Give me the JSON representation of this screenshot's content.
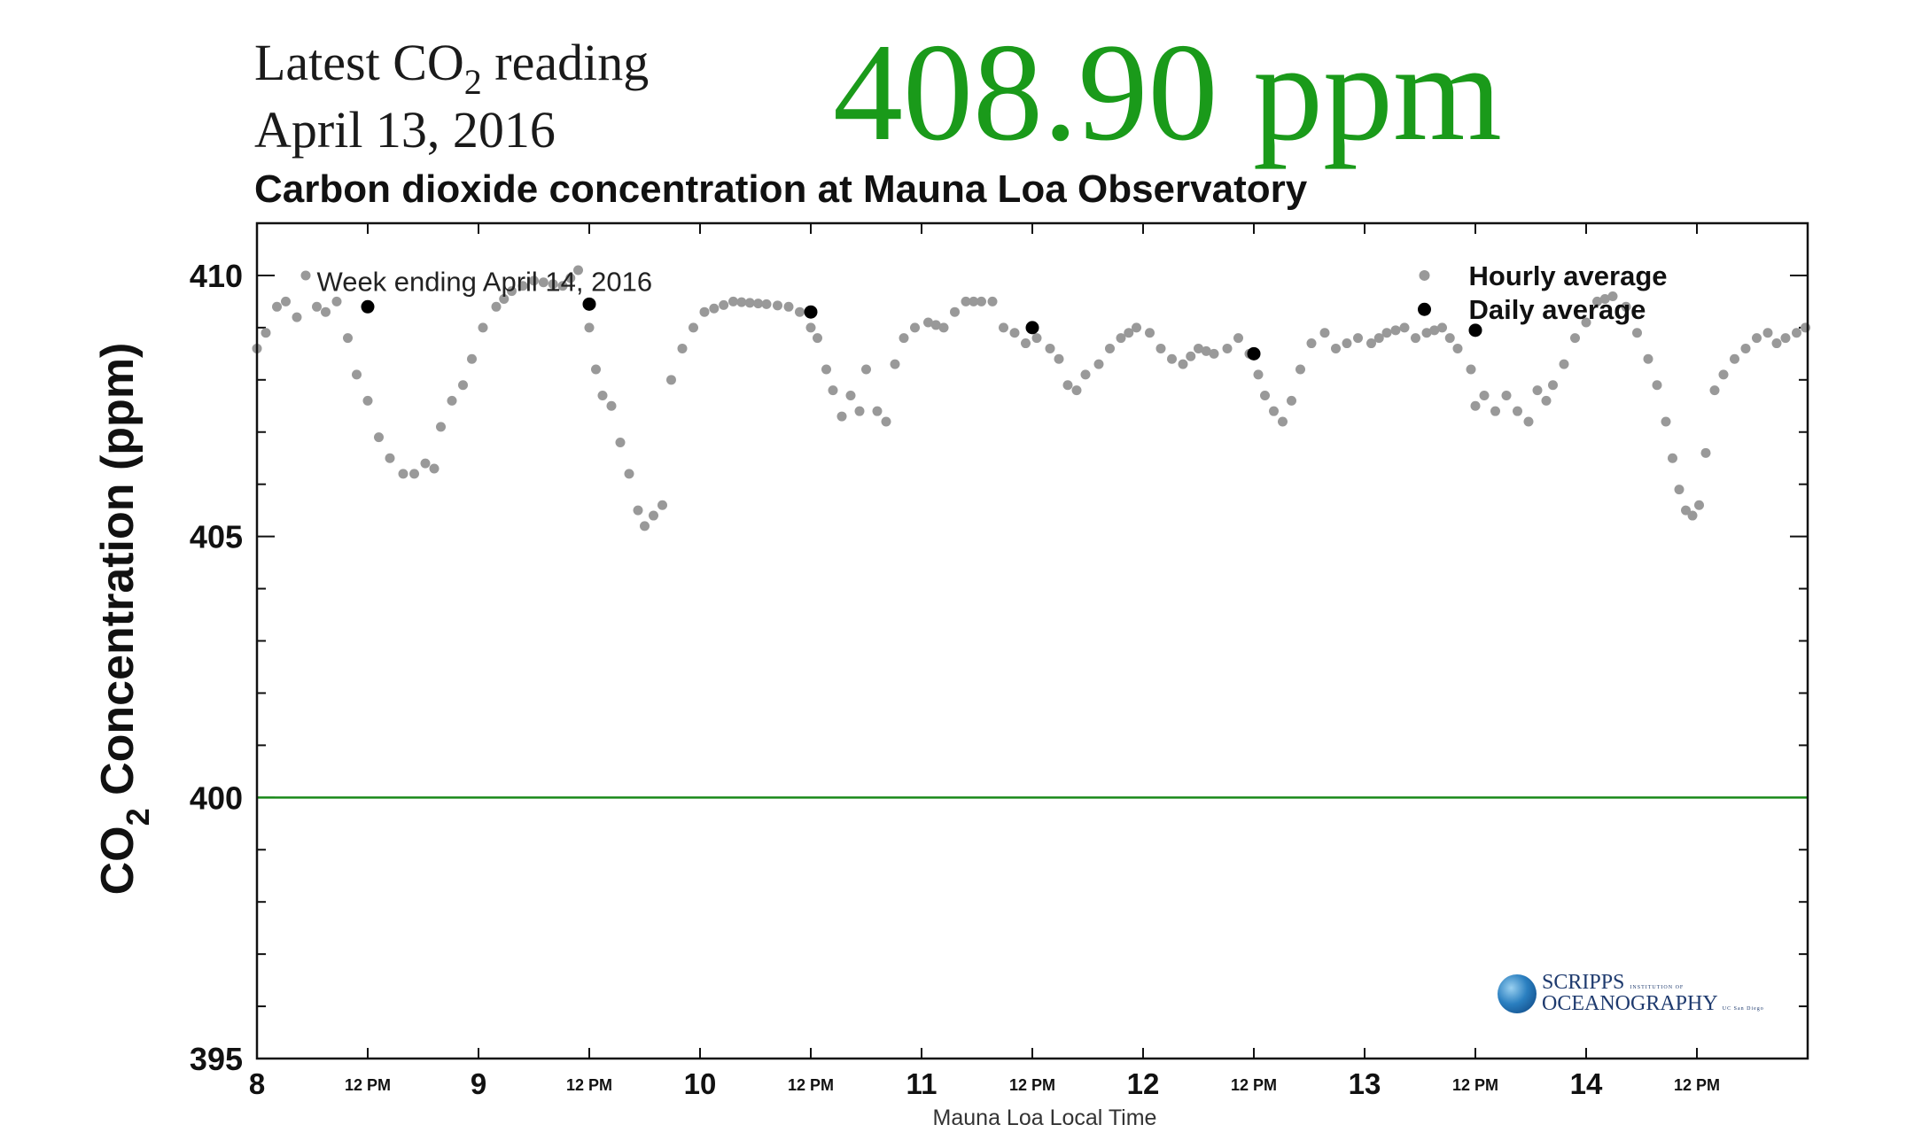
{
  "header": {
    "latest_label_pre": "Latest CO",
    "latest_label_sub": "2",
    "latest_label_post": " reading",
    "latest_date": "April 13, 2016",
    "latest_value": "408.90 ppm",
    "value_color": "#1a9a1a"
  },
  "logo": {
    "line1": "SCRIPPS",
    "line1_small": "INSTITUTION OF",
    "line2": "OCEANOGRAPHY",
    "line2_small": "UC San Diego"
  },
  "chart_data": {
    "type": "scatter",
    "title": "Carbon dioxide concentration at Mauna Loa Observatory",
    "annotation": "Week ending April 14, 2016",
    "xlabel": "Mauna Loa Local Time",
    "ylabel_pre": "CO",
    "ylabel_sub": "2",
    "ylabel_post": " Concentration (ppm)",
    "xlim": [
      8,
      15
    ],
    "ylim": [
      395,
      411
    ],
    "major_x_ticks": [
      {
        "x": 8,
        "label": "8"
      },
      {
        "x": 9,
        "label": "9"
      },
      {
        "x": 10,
        "label": "10"
      },
      {
        "x": 11,
        "label": "11"
      },
      {
        "x": 12,
        "label": "12"
      },
      {
        "x": 13,
        "label": "13"
      },
      {
        "x": 14,
        "label": "14"
      }
    ],
    "minor_x_ticks": [
      {
        "x": 8.5,
        "label": "12 PM"
      },
      {
        "x": 9.5,
        "label": "12 PM"
      },
      {
        "x": 10.5,
        "label": "12 PM"
      },
      {
        "x": 11.5,
        "label": "12 PM"
      },
      {
        "x": 12.5,
        "label": "12 PM"
      },
      {
        "x": 13.5,
        "label": "12 PM"
      },
      {
        "x": 14.5,
        "label": "12 PM"
      }
    ],
    "y_ticks": [
      395,
      400,
      405,
      410
    ],
    "reference_line": {
      "y": 400,
      "color": "#1a8a1a"
    },
    "legend": {
      "position": "top-right",
      "entries": [
        {
          "label": "Hourly average",
          "color": "#999999"
        },
        {
          "label": "Daily average",
          "color": "#000000"
        }
      ]
    },
    "hourly_anchors": [
      [
        8.0,
        408.6
      ],
      [
        8.04,
        408.9
      ],
      [
        8.09,
        409.4
      ],
      [
        8.13,
        409.5
      ],
      [
        8.18,
        409.2
      ],
      [
        8.22,
        410.0
      ],
      [
        8.27,
        409.4
      ],
      [
        8.31,
        409.3
      ],
      [
        8.36,
        409.5
      ],
      [
        8.41,
        408.8
      ],
      [
        8.45,
        408.1
      ],
      [
        8.5,
        407.6
      ],
      [
        8.55,
        406.9
      ],
      [
        8.6,
        406.5
      ],
      [
        8.66,
        406.2
      ],
      [
        8.71,
        406.2
      ],
      [
        8.76,
        406.4
      ],
      [
        8.8,
        406.3
      ],
      [
        8.83,
        407.1
      ],
      [
        8.88,
        407.6
      ],
      [
        8.93,
        407.9
      ],
      [
        8.97,
        408.4
      ],
      [
        9.02,
        409.0
      ],
      [
        9.08,
        409.4
      ],
      [
        9.15,
        409.7
      ],
      [
        9.25,
        409.9
      ],
      [
        9.38,
        409.8
      ],
      [
        9.45,
        410.1
      ],
      [
        9.5,
        409.0
      ],
      [
        9.53,
        408.2
      ],
      [
        9.56,
        407.7
      ],
      [
        9.6,
        407.5
      ],
      [
        9.64,
        406.8
      ],
      [
        9.68,
        406.2
      ],
      [
        9.72,
        405.5
      ],
      [
        9.75,
        405.2
      ],
      [
        9.79,
        405.4
      ],
      [
        9.83,
        405.6
      ],
      [
        9.87,
        408.0
      ],
      [
        9.92,
        408.6
      ],
      [
        9.97,
        409.0
      ],
      [
        10.02,
        409.3
      ],
      [
        10.15,
        409.5
      ],
      [
        10.3,
        409.45
      ],
      [
        10.4,
        409.4
      ],
      [
        10.45,
        409.3
      ],
      [
        10.5,
        409.0
      ],
      [
        10.53,
        408.8
      ],
      [
        10.57,
        408.2
      ],
      [
        10.6,
        407.8
      ],
      [
        10.64,
        407.3
      ],
      [
        10.68,
        407.7
      ],
      [
        10.72,
        407.4
      ],
      [
        10.75,
        408.2
      ],
      [
        10.8,
        407.4
      ],
      [
        10.84,
        407.2
      ],
      [
        10.88,
        408.3
      ],
      [
        10.92,
        408.8
      ],
      [
        10.97,
        409.0
      ],
      [
        11.03,
        409.1
      ],
      [
        11.1,
        409.0
      ],
      [
        11.15,
        409.3
      ],
      [
        11.2,
        409.5
      ],
      [
        11.27,
        409.5
      ],
      [
        11.32,
        409.5
      ],
      [
        11.37,
        409.0
      ],
      [
        11.42,
        408.9
      ],
      [
        11.47,
        408.7
      ],
      [
        11.52,
        408.8
      ],
      [
        11.58,
        408.6
      ],
      [
        11.62,
        408.4
      ],
      [
        11.66,
        407.9
      ],
      [
        11.7,
        407.8
      ],
      [
        11.74,
        408.1
      ],
      [
        11.8,
        408.3
      ],
      [
        11.85,
        408.6
      ],
      [
        11.9,
        408.8
      ],
      [
        11.97,
        409.0
      ],
      [
        12.03,
        408.9
      ],
      [
        12.08,
        408.6
      ],
      [
        12.13,
        408.4
      ],
      [
        12.18,
        408.3
      ],
      [
        12.25,
        408.6
      ],
      [
        12.32,
        408.5
      ],
      [
        12.38,
        408.6
      ],
      [
        12.43,
        408.8
      ],
      [
        12.48,
        408.5
      ],
      [
        12.52,
        408.1
      ],
      [
        12.55,
        407.7
      ],
      [
        12.59,
        407.4
      ],
      [
        12.63,
        407.2
      ],
      [
        12.67,
        407.6
      ],
      [
        12.71,
        408.2
      ],
      [
        12.76,
        408.7
      ],
      [
        12.82,
        408.9
      ],
      [
        12.87,
        408.6
      ],
      [
        12.92,
        408.7
      ],
      [
        12.97,
        408.8
      ],
      [
        13.03,
        408.7
      ],
      [
        13.1,
        408.9
      ],
      [
        13.18,
        409.0
      ],
      [
        13.23,
        408.8
      ],
      [
        13.28,
        408.9
      ],
      [
        13.35,
        409.0
      ],
      [
        13.42,
        408.6
      ],
      [
        13.48,
        408.2
      ],
      [
        13.5,
        407.5
      ],
      [
        13.54,
        407.7
      ],
      [
        13.59,
        407.4
      ],
      [
        13.64,
        407.7
      ],
      [
        13.69,
        407.4
      ],
      [
        13.74,
        407.2
      ],
      [
        13.78,
        407.8
      ],
      [
        13.82,
        407.6
      ],
      [
        13.85,
        407.9
      ],
      [
        13.9,
        408.3
      ],
      [
        13.95,
        408.8
      ],
      [
        14.0,
        409.1
      ],
      [
        14.05,
        409.5
      ],
      [
        14.12,
        409.6
      ],
      [
        14.18,
        409.4
      ],
      [
        14.23,
        408.9
      ],
      [
        14.28,
        408.4
      ],
      [
        14.32,
        407.9
      ],
      [
        14.36,
        407.2
      ],
      [
        14.39,
        406.5
      ],
      [
        14.42,
        405.9
      ],
      [
        14.45,
        405.5
      ],
      [
        14.48,
        405.4
      ],
      [
        14.51,
        405.6
      ],
      [
        14.54,
        406.6
      ],
      [
        14.58,
        407.8
      ],
      [
        14.62,
        408.1
      ],
      [
        14.67,
        408.4
      ],
      [
        14.72,
        408.6
      ],
      [
        14.77,
        408.8
      ],
      [
        14.82,
        408.9
      ],
      [
        14.86,
        408.7
      ],
      [
        14.9,
        408.8
      ],
      [
        14.95,
        408.9
      ],
      [
        14.99,
        409.0
      ]
    ],
    "daily_average": [
      [
        8.5,
        409.4
      ],
      [
        9.5,
        409.45
      ],
      [
        10.5,
        409.3
      ],
      [
        11.5,
        409.0
      ],
      [
        12.5,
        408.5
      ],
      [
        13.27,
        409.35
      ],
      [
        13.5,
        408.95
      ]
    ]
  }
}
